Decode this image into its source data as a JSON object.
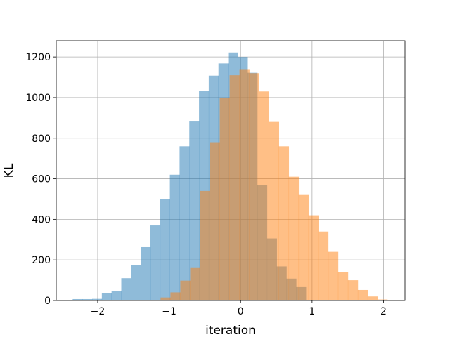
{
  "chart_data": {
    "type": "bar",
    "title": "",
    "xlabel": "iteration",
    "ylabel": "KL",
    "xlim": [
      -2.58,
      2.3
    ],
    "ylim": [
      0,
      1280
    ],
    "x_ticks": [
      -2,
      -1,
      0,
      1,
      2
    ],
    "x_tick_labels": [
      "−2",
      "−1",
      "0",
      "1",
      "2"
    ],
    "y_ticks": [
      0,
      200,
      400,
      600,
      800,
      1000,
      1200
    ],
    "y_tick_labels": [
      "0",
      "200",
      "400",
      "600",
      "800",
      "1000",
      "1200"
    ],
    "grid": true,
    "legend": "none",
    "series": [
      {
        "color": "#1f77b4",
        "alpha": 0.5,
        "bin_edges": [
          -2.35,
          -2.214,
          -2.078,
          -1.942,
          -1.806,
          -1.67,
          -1.534,
          -1.398,
          -1.262,
          -1.126,
          -0.99,
          -0.854,
          -0.718,
          -0.582,
          -0.446,
          -0.31,
          -0.174,
          -0.038,
          0.098,
          0.234,
          0.37,
          0.506,
          0.642,
          0.778,
          0.914,
          1.05
        ],
        "counts": [
          7,
          7,
          8,
          38,
          48,
          110,
          175,
          263,
          370,
          500,
          620,
          760,
          882,
          1032,
          1108,
          1168,
          1222,
          1200,
          1122,
          568,
          306,
          168,
          108,
          66,
          0
        ]
      },
      {
        "color": "#ff7f0e",
        "alpha": 0.5,
        "bin_edges": [
          -1.12,
          -0.982,
          -0.844,
          -0.706,
          -0.568,
          -0.43,
          -0.292,
          -0.154,
          -0.016,
          0.122,
          0.26,
          0.398,
          0.536,
          0.674,
          0.812,
          0.95,
          1.088,
          1.226,
          1.364,
          1.502,
          1.64,
          1.778,
          1.916,
          2.054
        ],
        "counts": [
          15,
          40,
          98,
          160,
          540,
          780,
          1000,
          1110,
          1140,
          1120,
          1030,
          880,
          760,
          610,
          520,
          420,
          340,
          240,
          140,
          100,
          52,
          20,
          5
        ]
      }
    ]
  }
}
